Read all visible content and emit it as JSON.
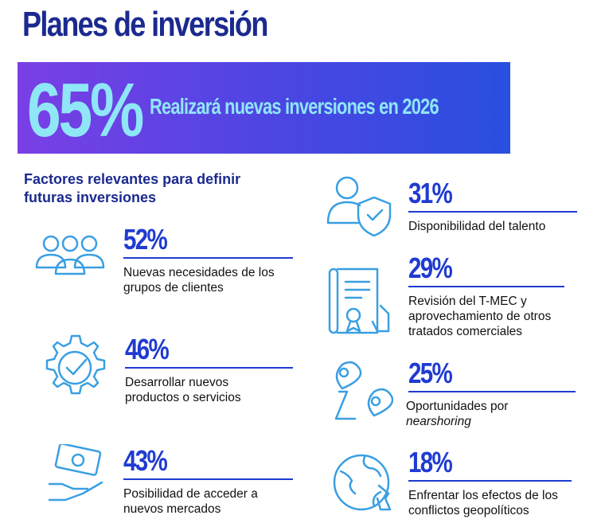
{
  "title": "Planes de inversión",
  "banner": {
    "value": "65%",
    "text": "Realizará nuevas inversiones en 2026"
  },
  "section_title": "Factores relevantes para definir futuras inversiones",
  "left_factors": [
    {
      "value": "52%",
      "label": "Nuevas necesidades de los grupos de clientes"
    },
    {
      "value": "46%",
      "label": "Desarrollar nuevos productos o servicios"
    },
    {
      "value": "43%",
      "label": "Posibilidad de acceder a nuevos mercados"
    }
  ],
  "right_factors": [
    {
      "value": "31%",
      "label": "Disponibilidad del talento"
    },
    {
      "value": "29%",
      "label": "Revisión del T-MEC y aprovechamiento de otros tratados comerciales"
    },
    {
      "value": "25%",
      "label": "Oportunidades por",
      "label_italic": "nearshoring"
    },
    {
      "value": "18%",
      "label": "Enfrentar los efectos de los conflictos geopolíticos"
    }
  ]
}
